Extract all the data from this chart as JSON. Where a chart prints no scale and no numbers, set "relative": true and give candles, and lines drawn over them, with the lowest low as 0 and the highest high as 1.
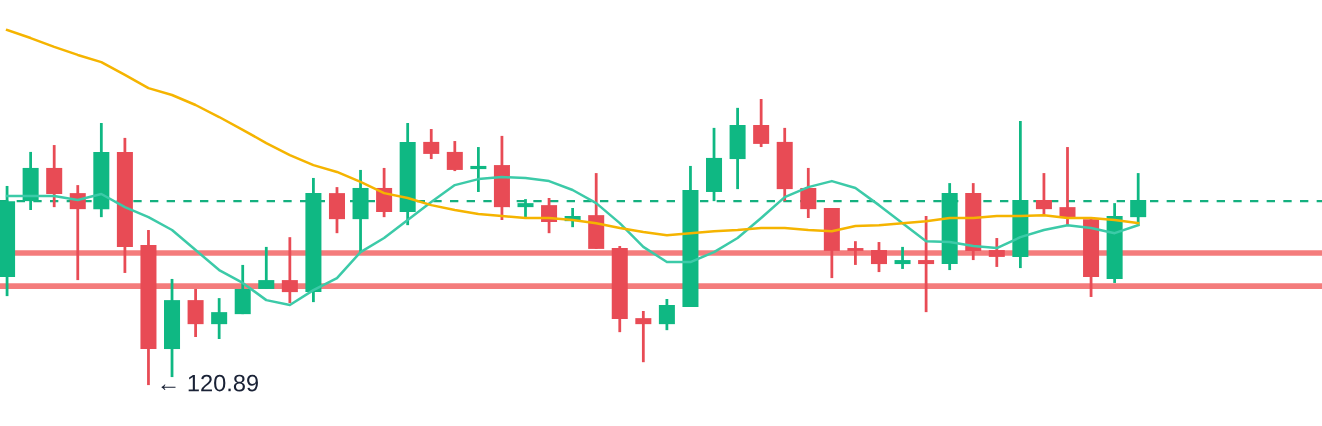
{
  "chart_data": {
    "type": "candlestick",
    "relative": true,
    "categories": [
      null,
      null,
      null,
      null,
      null,
      null,
      null,
      null,
      null,
      null,
      null,
      null,
      null,
      null,
      null,
      null,
      null,
      null,
      null,
      null,
      null,
      null,
      null,
      null,
      null,
      null,
      null,
      null,
      null,
      null,
      null,
      null,
      null,
      null,
      null,
      null,
      null,
      null,
      null,
      null,
      null,
      null,
      null,
      null,
      null,
      null,
      null,
      null,
      null
    ],
    "ohlc": [
      [
        0.378,
        0.696,
        0.311,
        0.643
      ],
      [
        0.643,
        0.815,
        0.612,
        0.759
      ],
      [
        0.759,
        0.839,
        0.622,
        0.668
      ],
      [
        0.671,
        0.699,
        0.367,
        0.615
      ],
      [
        0.615,
        0.916,
        0.587,
        0.815
      ],
      [
        0.815,
        0.864,
        0.392,
        0.483
      ],
      [
        0.49,
        0.542,
        0.0,
        0.126
      ],
      [
        0.126,
        0.371,
        0.028,
        0.297
      ],
      [
        0.297,
        0.336,
        0.168,
        0.213
      ],
      [
        0.213,
        0.304,
        0.161,
        0.255
      ],
      [
        0.248,
        0.42,
        0.248,
        0.336
      ],
      [
        0.336,
        0.483,
        0.336,
        0.367
      ],
      [
        0.367,
        0.517,
        0.287,
        0.325
      ],
      [
        0.325,
        0.724,
        0.29,
        0.671
      ],
      [
        0.671,
        0.692,
        0.531,
        0.58
      ],
      [
        0.58,
        0.752,
        0.465,
        0.689
      ],
      [
        0.689,
        0.759,
        0.587,
        0.605
      ],
      [
        0.605,
        0.916,
        0.559,
        0.85
      ],
      [
        0.85,
        0.895,
        0.79,
        0.808
      ],
      [
        0.815,
        0.853,
        0.748,
        0.752
      ],
      [
        0.755,
        0.832,
        0.675,
        0.766
      ],
      [
        0.769,
        0.871,
        0.577,
        0.622
      ],
      [
        0.622,
        0.65,
        0.587,
        0.636
      ],
      [
        0.629,
        0.654,
        0.531,
        0.57
      ],
      [
        0.573,
        0.619,
        0.552,
        0.591
      ],
      [
        0.594,
        0.741,
        0.476,
        0.476
      ],
      [
        0.479,
        0.486,
        0.185,
        0.231
      ],
      [
        0.234,
        0.259,
        0.08,
        0.213
      ],
      [
        0.213,
        0.301,
        0.192,
        0.28
      ],
      [
        0.273,
        0.766,
        0.273,
        0.682
      ],
      [
        0.675,
        0.899,
        0.643,
        0.794
      ],
      [
        0.79,
        0.969,
        0.685,
        0.909
      ],
      [
        0.909,
        1.0,
        0.832,
        0.843
      ],
      [
        0.85,
        0.899,
        0.643,
        0.685
      ],
      [
        0.689,
        0.759,
        0.584,
        0.615
      ],
      [
        0.619,
        0.619,
        0.374,
        0.469
      ],
      [
        0.479,
        0.503,
        0.42,
        0.469
      ],
      [
        0.472,
        0.5,
        0.395,
        0.423
      ],
      [
        0.423,
        0.483,
        0.406,
        0.437
      ],
      [
        0.437,
        0.591,
        0.255,
        0.423
      ],
      [
        0.423,
        0.706,
        0.402,
        0.671
      ],
      [
        0.671,
        0.706,
        0.437,
        0.469
      ],
      [
        0.472,
        0.514,
        0.413,
        0.448
      ],
      [
        0.448,
        0.923,
        0.409,
        0.647
      ],
      [
        0.647,
        0.741,
        0.594,
        0.615
      ],
      [
        0.622,
        0.832,
        0.556,
        0.587
      ],
      [
        0.58,
        0.587,
        0.308,
        0.378
      ],
      [
        0.371,
        0.636,
        0.357,
        0.591
      ],
      [
        0.587,
        0.741,
        0.556,
        0.647
      ]
    ],
    "colors": [
      "#0fb883",
      "#0fb883",
      "#e84b55",
      "#e84b55",
      "#0fb883",
      "#e84b55",
      "#e84b55",
      "#0fb883",
      "#e84b55",
      "#0fb883",
      "#0fb883",
      "#0fb883",
      "#e84b55",
      "#0fb883",
      "#e84b55",
      "#0fb883",
      "#e84b55",
      "#0fb883",
      "#e84b55",
      "#e84b55",
      "#0fb883",
      "#e84b55",
      "#0fb883",
      "#e84b55",
      "#0fb883",
      "#e84b55",
      "#e84b55",
      "#e84b55",
      "#0fb883",
      "#0fb883",
      "#0fb883",
      "#0fb883",
      "#e84b55",
      "#e84b55",
      "#e84b55",
      "#e84b55",
      "#e84b55",
      "#e84b55",
      "#0fb883",
      "#e84b55",
      "#0fb883",
      "#e84b55",
      "#e84b55",
      "#0fb883",
      "#e84b55",
      "#e84b55",
      "#e84b55",
      "#0fb883",
      "#0fb883"
    ],
    "series": [
      {
        "type": "line",
        "color": "#3ccaa8",
        "values": [
          0.661,
          0.661,
          0.661,
          0.647,
          0.668,
          0.622,
          0.587,
          0.542,
          0.472,
          0.402,
          0.357,
          0.297,
          0.28,
          0.332,
          0.374,
          0.465,
          0.514,
          0.577,
          0.64,
          0.699,
          0.72,
          0.727,
          0.724,
          0.713,
          0.682,
          0.636,
          0.566,
          0.483,
          0.43,
          0.43,
          0.465,
          0.514,
          0.584,
          0.657,
          0.692,
          0.713,
          0.689,
          0.629,
          0.566,
          0.503,
          0.5,
          0.486,
          0.479,
          0.517,
          0.542,
          0.559,
          0.549,
          0.531,
          0.559
        ]
      },
      {
        "type": "line",
        "color": "#f5b400",
        "values": [
          1.241,
          1.213,
          1.182,
          1.154,
          1.129,
          1.084,
          1.038,
          1.014,
          0.979,
          0.937,
          0.892,
          0.846,
          0.804,
          0.769,
          0.745,
          0.71,
          0.671,
          0.654,
          0.629,
          0.612,
          0.598,
          0.591,
          0.584,
          0.584,
          0.577,
          0.566,
          0.549,
          0.535,
          0.524,
          0.531,
          0.538,
          0.542,
          0.549,
          0.549,
          0.542,
          0.538,
          0.556,
          0.559,
          0.566,
          0.573,
          0.584,
          0.584,
          0.591,
          0.591,
          0.594,
          0.584,
          0.584,
          0.577,
          0.566
        ]
      }
    ],
    "ref_lines": [
      {
        "axis": "y",
        "value": 0.643,
        "color": "#14b07f",
        "line_style": "dashed"
      },
      {
        "axis": "y",
        "value": 0.462,
        "color": "#f47c7c",
        "line_style": "solid"
      },
      {
        "axis": "y",
        "value": 0.346,
        "color": "#f47c7c",
        "line_style": "solid"
      }
    ],
    "annotations": [
      "← 120.89"
    ]
  }
}
